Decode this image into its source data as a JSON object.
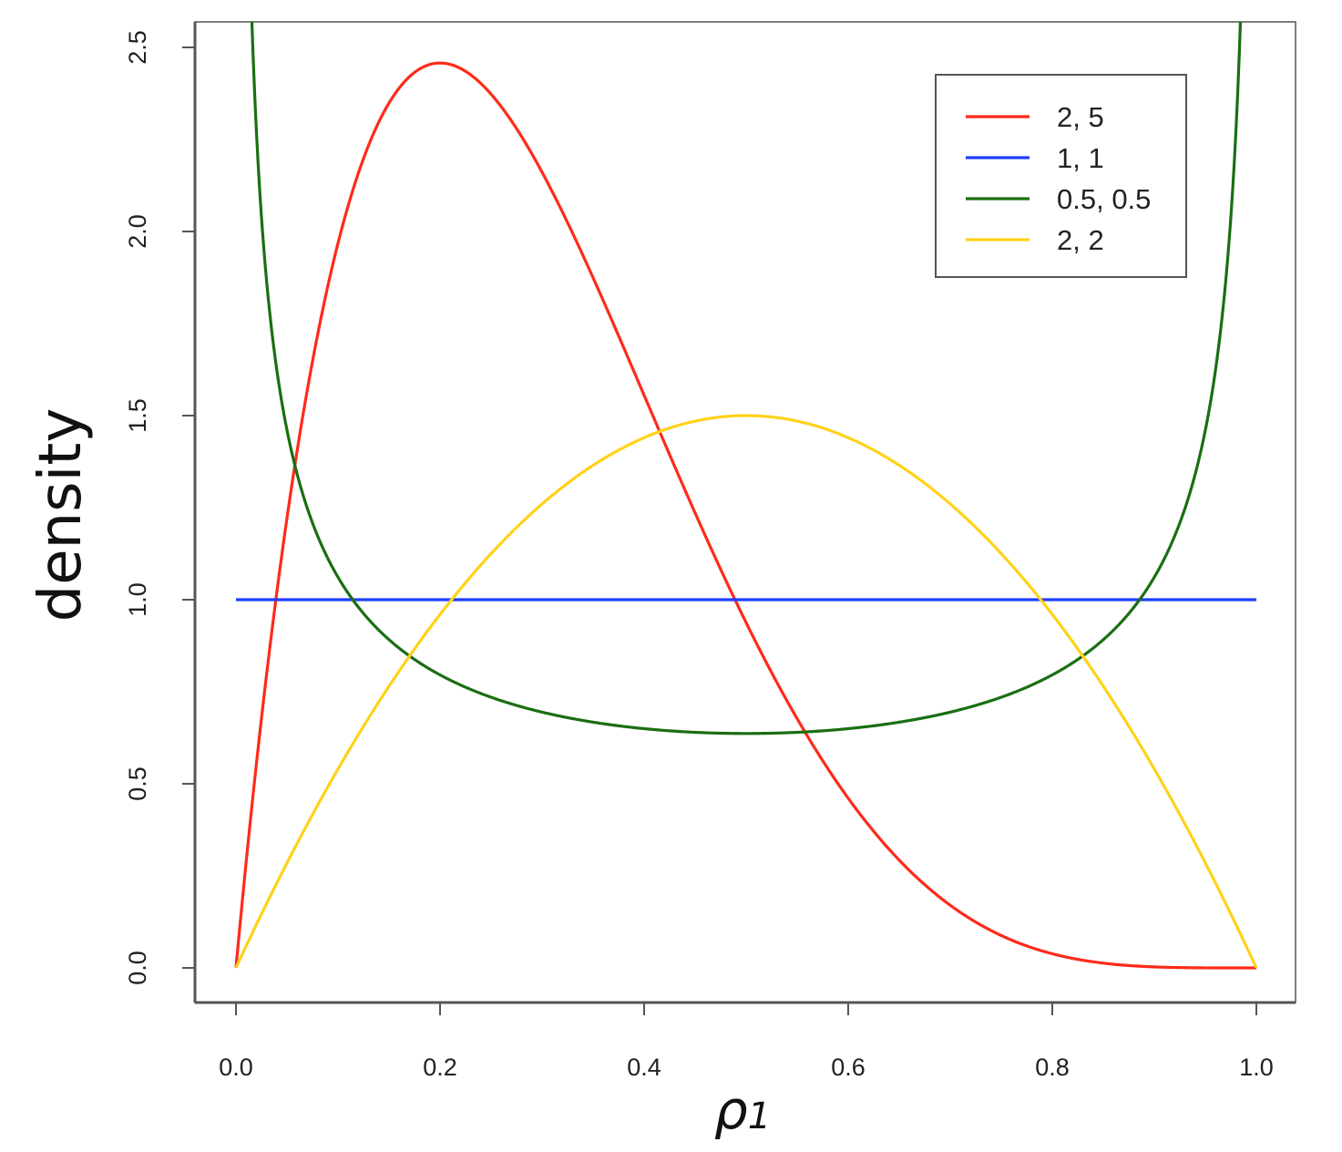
{
  "chart_data": {
    "type": "line",
    "title": "",
    "xlabel": "ρ",
    "xlabel_subscript": "1",
    "ylabel": "density",
    "xlim": [
      0,
      1
    ],
    "ylim": [
      0,
      2.5
    ],
    "x_ticks": [
      "0.0",
      "0.2",
      "0.4",
      "0.6",
      "0.8",
      "1.0"
    ],
    "y_ticks": [
      "0.0",
      "0.5",
      "1.0",
      "1.5",
      "2.0",
      "2.5"
    ],
    "grid": false,
    "legend_position": "top-right",
    "series": [
      {
        "name": "2, 5",
        "color": "#ff2a1a",
        "alpha": 2,
        "beta": 5
      },
      {
        "name": "1, 1",
        "color": "#1f3dff",
        "alpha": 1,
        "beta": 1
      },
      {
        "name": "0.5, 0.5",
        "color": "#1a6e12",
        "alpha": 0.5,
        "beta": 0.5
      },
      {
        "name": "2, 2",
        "color": "#ffd21a",
        "alpha": 2,
        "beta": 2
      }
    ]
  }
}
